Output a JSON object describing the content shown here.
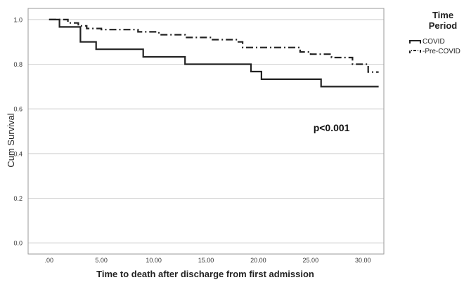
{
  "chart_data": {
    "type": "line",
    "subtype": "kaplan-meier-step",
    "xlabel": "Time to death after discharge from first admission",
    "ylabel": "Cum Survival",
    "xlim": [
      -2,
      32
    ],
    "ylim": [
      -0.05,
      1.05
    ],
    "x_ticks": [
      0,
      5,
      10,
      15,
      20,
      25,
      30
    ],
    "x_tick_labels": [
      ".00",
      "5.00",
      "10.00",
      "15.00",
      "20.00",
      "25.00",
      "30.00"
    ],
    "y_ticks": [
      0.0,
      0.2,
      0.4,
      0.6,
      0.8,
      1.0
    ],
    "y_tick_labels": [
      "0.0",
      "0.2",
      "0.4",
      "0.6",
      "0.8",
      "1.0"
    ],
    "grid": "horizontal",
    "legend": {
      "title": "Time Period",
      "position": "right"
    },
    "annotations": [
      {
        "text": "p<0.001",
        "x": 27,
        "y": 0.5
      }
    ],
    "series": [
      {
        "name": "COVID",
        "style": "solid",
        "color": "#222222",
        "points": [
          [
            0,
            1.0
          ],
          [
            1,
            1.0
          ],
          [
            1,
            0.967
          ],
          [
            3,
            0.967
          ],
          [
            3,
            0.9
          ],
          [
            4.5,
            0.9
          ],
          [
            4.5,
            0.867
          ],
          [
            9,
            0.867
          ],
          [
            9,
            0.833
          ],
          [
            13,
            0.833
          ],
          [
            13,
            0.8
          ],
          [
            19.3,
            0.8
          ],
          [
            19.3,
            0.767
          ],
          [
            20.3,
            0.767
          ],
          [
            20.3,
            0.733
          ],
          [
            26,
            0.733
          ],
          [
            26,
            0.7
          ],
          [
            31.5,
            0.7
          ]
        ]
      },
      {
        "name": "Pre-COVID",
        "style": "dashdot",
        "color": "#222222",
        "points": [
          [
            0,
            1.0
          ],
          [
            1.8,
            1.0
          ],
          [
            1.8,
            0.985
          ],
          [
            2.8,
            0.985
          ],
          [
            2.8,
            0.972
          ],
          [
            3.6,
            0.972
          ],
          [
            3.6,
            0.96
          ],
          [
            5,
            0.96
          ],
          [
            5,
            0.955
          ],
          [
            8.5,
            0.955
          ],
          [
            8.5,
            0.945
          ],
          [
            10.5,
            0.945
          ],
          [
            10.5,
            0.932
          ],
          [
            13,
            0.932
          ],
          [
            13,
            0.92
          ],
          [
            15.5,
            0.92
          ],
          [
            15.5,
            0.91
          ],
          [
            18,
            0.91
          ],
          [
            18,
            0.9
          ],
          [
            18.5,
            0.9
          ],
          [
            18.5,
            0.875
          ],
          [
            24,
            0.875
          ],
          [
            24,
            0.855
          ],
          [
            25,
            0.855
          ],
          [
            25,
            0.845
          ],
          [
            27,
            0.845
          ],
          [
            27,
            0.83
          ],
          [
            29,
            0.83
          ],
          [
            29,
            0.8
          ],
          [
            30.5,
            0.8
          ],
          [
            30.5,
            0.765
          ],
          [
            31.5,
            0.765
          ]
        ]
      }
    ]
  }
}
